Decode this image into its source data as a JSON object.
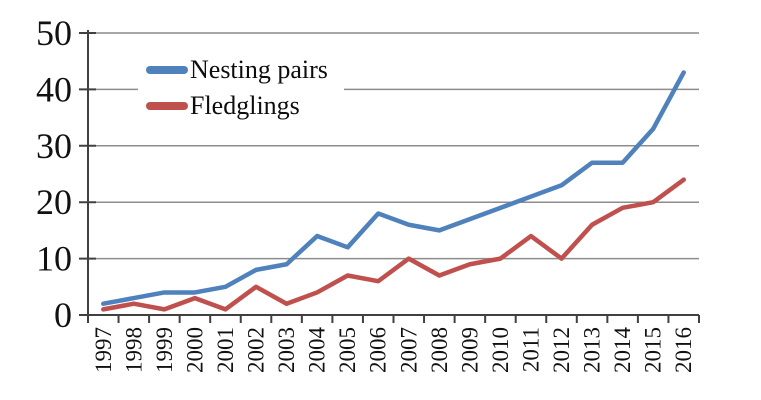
{
  "chart_data": {
    "type": "line",
    "x": [
      "1997",
      "1998",
      "1999",
      "2000",
      "2001",
      "2002",
      "2003",
      "2004",
      "2005",
      "2006",
      "2007",
      "2008",
      "2009",
      "2010",
      "2011",
      "2012",
      "2013",
      "2014",
      "2015",
      "2016"
    ],
    "series": [
      {
        "name": "Nesting pairs",
        "color": "#4F81BD",
        "values": [
          2,
          3,
          4,
          4,
          5,
          8,
          9,
          14,
          12,
          18,
          16,
          15,
          17,
          19,
          21,
          23,
          27,
          27,
          33,
          43
        ]
      },
      {
        "name": "Fledglings",
        "color": "#C0504D",
        "values": [
          1,
          2,
          1,
          3,
          1,
          5,
          2,
          4,
          7,
          6,
          10,
          7,
          9,
          10,
          14,
          10,
          16,
          19,
          20,
          24
        ]
      }
    ],
    "title": "",
    "xlabel": "",
    "ylabel": "",
    "ylim": [
      0,
      50
    ],
    "yticks": [
      0,
      10,
      20,
      30,
      40,
      50
    ],
    "grid": "horizontal",
    "legend_position": "inside-top-left",
    "colors": {
      "gridline": "#8C8C8C",
      "axis": "#404040",
      "label": "#111111",
      "background": "#FFFFFF"
    }
  }
}
